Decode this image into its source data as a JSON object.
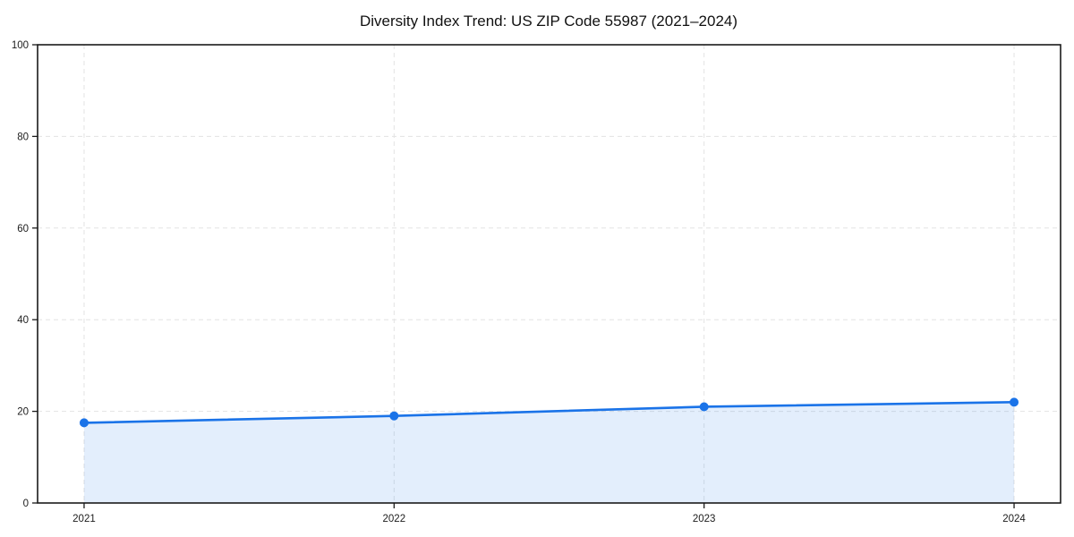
{
  "colors": {
    "line": "#1a73e8",
    "marker": "#1a73e8",
    "area": "#1a73e8",
    "grid": "#e3e3e3",
    "axis": "#1a1a1a",
    "text": "#1c1c1c",
    "background": "#ffffff"
  },
  "chart_data": {
    "type": "line",
    "title": "Diversity Index Trend: US ZIP Code 55987 (2021–2024)",
    "x": [
      2021,
      2022,
      2023,
      2024
    ],
    "x_labels": [
      "2021",
      "2022",
      "2023",
      "2024"
    ],
    "series": [
      {
        "name": "Diversity Index",
        "values": [
          17.5,
          19,
          21,
          22
        ]
      }
    ],
    "xlabel": "",
    "ylabel": "",
    "ylim": [
      0,
      100
    ],
    "yticks": [
      0,
      20,
      40,
      60,
      80,
      100
    ],
    "ytick_labels": [
      "0",
      "20",
      "40",
      "60",
      "80",
      "100"
    ],
    "x_margin_frac": 0.05,
    "grid": true,
    "grid_dashed": true,
    "legend": false,
    "marker": "circle",
    "area_fill": true,
    "area_opacity": 0.12
  }
}
